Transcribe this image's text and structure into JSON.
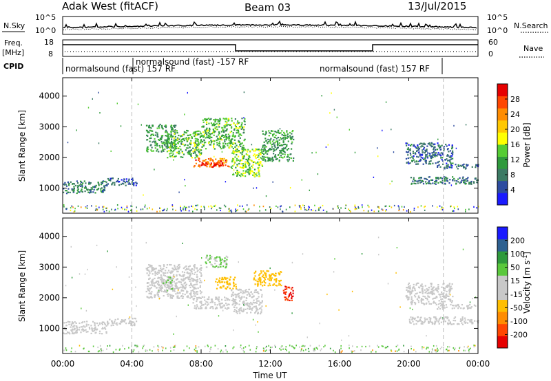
{
  "header": {
    "station": "Adak West (fitACF)",
    "beam": "Beam 03",
    "date": "13/Jul/2015"
  },
  "status_panels": {
    "noise_left_label": "N.Sky",
    "noise_right_label": "N.Search",
    "noise_left_ticks": [
      "10^5",
      "10^0"
    ],
    "noise_right_ticks": [
      "10^5",
      "10^0"
    ],
    "freq_label_line1": "Freq.",
    "freq_label_line2": "[MHz]",
    "freq_ticks": [
      "18",
      "8"
    ],
    "nave_label": "Nave",
    "nave_ticks": [
      "60",
      "0"
    ],
    "cpid_label": "CPID",
    "cpid_segments": [
      {
        "text": "normalsound (fast) 157 RF",
        "start_hour": 0,
        "end_hour": 4
      },
      {
        "text": "normalsound (fast) -157 RF",
        "start_hour": 4,
        "end_hour": 18
      },
      {
        "text": "normalsound (fast) 157 RF",
        "start_hour": 18,
        "end_hour": 22
      }
    ]
  },
  "colors": {
    "power_scale": [
      "#1a1aff",
      "#2d4ca0",
      "#3c7a64",
      "#2f9a3c",
      "#55cc33",
      "#ffff00",
      "#ffc800",
      "#ff8c00",
      "#ff4600",
      "#e60000"
    ],
    "velocity_scale": [
      "#e60000",
      "#ff4600",
      "#ff8c00",
      "#ffbe00",
      "#c8c8c8",
      "#c8c8c8",
      "#5ac83c",
      "#2f9a3c",
      "#2d6090",
      "#1a1aff"
    ],
    "dashed_marker": "#bbbbbb"
  },
  "chart_data": [
    {
      "type": "heatmap",
      "title": "",
      "xlabel": "Time UT",
      "ylabel": "Slant Range [km]",
      "xlim": [
        0,
        24
      ],
      "ylim": [
        180,
        4600
      ],
      "x_ticks": [
        "00:00",
        "04:00",
        "08:00",
        "12:00",
        "16:00",
        "20:00",
        "00:00"
      ],
      "y_ticks": [
        "1000",
        "2000",
        "3000",
        "4000"
      ],
      "colorbar": {
        "label": "Power [dB]",
        "ticks": [
          "4",
          "8",
          "12",
          "16",
          "20",
          "24",
          "28"
        ],
        "range": [
          0,
          30
        ]
      },
      "echo_regions": [
        {
          "t0": 0.0,
          "t1": 2.5,
          "r0": 850,
          "r1": 1250,
          "value": 8
        },
        {
          "t0": 2.5,
          "t1": 4.3,
          "r0": 1100,
          "r1": 1350,
          "value": 6
        },
        {
          "t0": 4.8,
          "t1": 6.5,
          "r0": 2200,
          "r1": 3100,
          "value": 10
        },
        {
          "t0": 6.0,
          "t1": 8.0,
          "r0": 2000,
          "r1": 2900,
          "value": 12
        },
        {
          "t0": 7.5,
          "t1": 9.6,
          "r0": 1700,
          "r1": 2000,
          "value": 24
        },
        {
          "t0": 7.9,
          "t1": 9.3,
          "r0": 1750,
          "r1": 1850,
          "value": 28
        },
        {
          "t0": 8.0,
          "t1": 10.5,
          "r0": 2300,
          "r1": 3300,
          "value": 12
        },
        {
          "t0": 9.7,
          "t1": 11.5,
          "r0": 1400,
          "r1": 2300,
          "value": 14
        },
        {
          "t0": 11.5,
          "t1": 13.3,
          "r0": 1900,
          "r1": 2900,
          "value": 10
        },
        {
          "t0": 19.8,
          "t1": 22.5,
          "r0": 1800,
          "r1": 2500,
          "value": 6
        },
        {
          "t0": 20.0,
          "t1": 24.0,
          "r0": 1150,
          "r1": 1400,
          "value": 7
        },
        {
          "t0": 21.5,
          "t1": 24.0,
          "r0": 1650,
          "r1": 1800,
          "value": 6
        }
      ]
    },
    {
      "type": "heatmap",
      "title": "",
      "xlabel": "Time UT",
      "ylabel": "Slant Range [km]",
      "xlim": [
        0,
        24
      ],
      "ylim": [
        180,
        4600
      ],
      "x_ticks": [
        "00:00",
        "04:00",
        "08:00",
        "12:00",
        "16:00",
        "20:00",
        "00:00"
      ],
      "y_ticks": [
        "1000",
        "2000",
        "3000",
        "4000"
      ],
      "colorbar": {
        "label": "Velocity [m s^-1]",
        "ticks": [
          "200",
          "100",
          "50",
          "15",
          "-15",
          "-50",
          "-100",
          "-200"
        ],
        "range": [
          -250,
          250
        ]
      },
      "echo_regions": [
        {
          "t0": 0.0,
          "t1": 2.5,
          "r0": 850,
          "r1": 1250,
          "value": 0
        },
        {
          "t0": 2.5,
          "t1": 4.3,
          "r0": 1100,
          "r1": 1350,
          "value": 0
        },
        {
          "t0": 4.8,
          "t1": 8.0,
          "r0": 2000,
          "r1": 3100,
          "value": -5
        },
        {
          "t0": 5.5,
          "t1": 6.3,
          "r0": 2200,
          "r1": 2700,
          "value": 40
        },
        {
          "t0": 7.5,
          "t1": 9.6,
          "r0": 1650,
          "r1": 2050,
          "value": -10
        },
        {
          "t0": 8.8,
          "t1": 10.0,
          "r0": 2300,
          "r1": 2700,
          "value": -70
        },
        {
          "t0": 8.2,
          "t1": 9.5,
          "r0": 3000,
          "r1": 3400,
          "value": 50
        },
        {
          "t0": 9.7,
          "t1": 11.5,
          "r0": 1500,
          "r1": 2300,
          "value": -10
        },
        {
          "t0": 11.0,
          "t1": 12.6,
          "r0": 2400,
          "r1": 2900,
          "value": -70
        },
        {
          "t0": 12.7,
          "t1": 13.3,
          "r0": 1900,
          "r1": 2400,
          "value": -200
        },
        {
          "t0": 19.8,
          "t1": 22.5,
          "r0": 1800,
          "r1": 2500,
          "value": 0
        },
        {
          "t0": 20.0,
          "t1": 24.0,
          "r0": 1150,
          "r1": 1400,
          "value": 0
        },
        {
          "t0": 21.5,
          "t1": 24.0,
          "r0": 1650,
          "r1": 1800,
          "value": 0
        }
      ]
    }
  ]
}
